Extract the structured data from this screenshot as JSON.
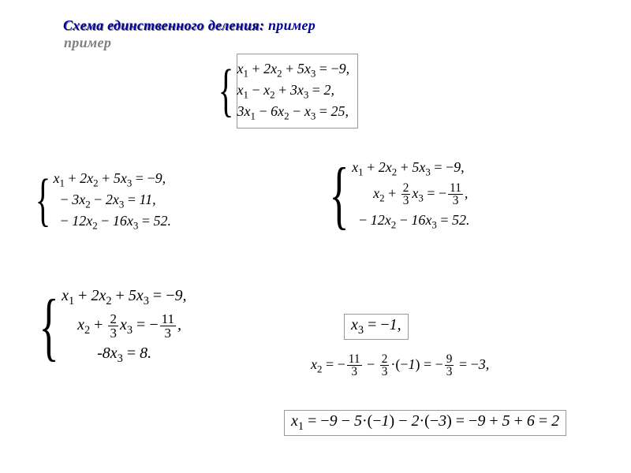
{
  "title": "Схема единственного деления: пример",
  "colors": {
    "title_main": "#000099",
    "title_shadow": "#808080",
    "box_border": "#999999",
    "text": "#000000",
    "bg": "#ffffff"
  },
  "fonts": {
    "family": "Times New Roman",
    "title_size_pt": 18,
    "eq_size_pt": 18,
    "big_eq_size_pt": 20,
    "brace_size_pt": 74
  },
  "systems": {
    "top": {
      "boxed": true,
      "rows": [
        "x₁ + 2x₂ + 5x₃ = −9,",
        "x₁ − x₂ + 3x₃ = 2,",
        "3x₁ − 6x₂ − x₃ = 25,"
      ]
    },
    "mid_left": {
      "rows": [
        "x₁ + 2x₂ + 5x₃ = −9,",
        "− 3x₂ − 2x₃ = 11,",
        "− 12x₂ − 16x₃ = 52."
      ]
    },
    "mid_right": {
      "rows": [
        "x₁ + 2x₂ + 5x₃ = −9,",
        "x₂ + (2/3)x₃ = −(11/3),",
        "− 12x₂ − 16x₃ = 52."
      ]
    },
    "bot_left": {
      "big": true,
      "rows": [
        "x₁ + 2x₂ + 5x₃ = −9,",
        "x₂ + (2/3)x₃ = −(11/3),",
        "-8x₃ = 8."
      ]
    }
  },
  "results": {
    "r1": "x₃ = −1,",
    "r2": "x₂ = −(11/3) − (2/3)·(−1) = −(9/3) = −3,",
    "r3": "x₁ = −9 − 5·(−1) − 2·(−3) = −9 + 5 + 6 = 2"
  }
}
